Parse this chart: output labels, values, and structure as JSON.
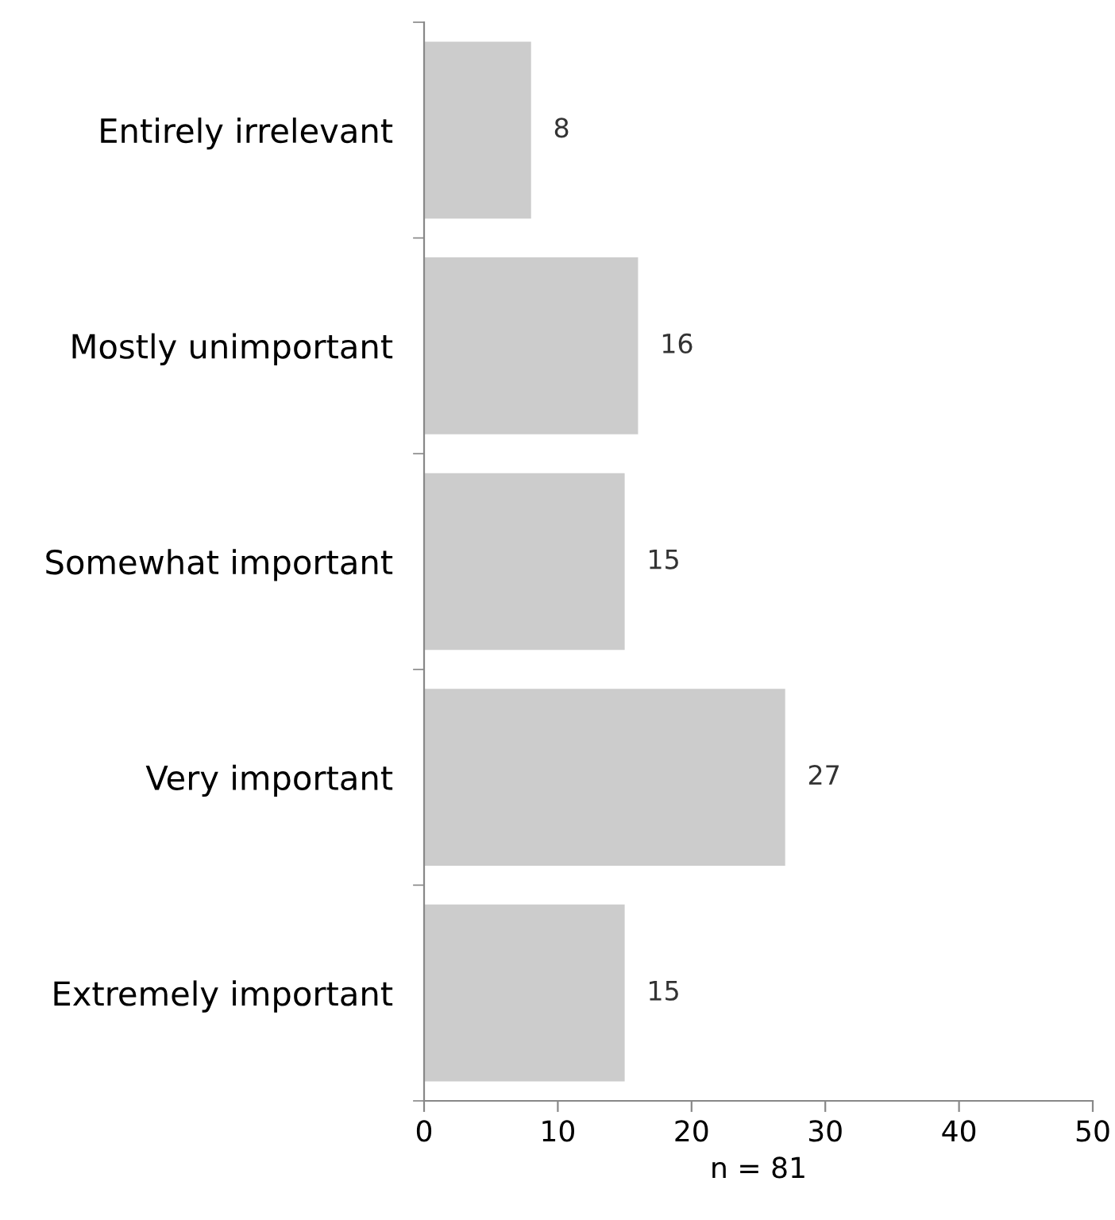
{
  "chart_data": {
    "type": "bar",
    "orientation": "horizontal",
    "categories": [
      "Entirely irrelevant",
      "Mostly unimportant",
      "Somewhat important",
      "Very important",
      "Extremely important"
    ],
    "values": [
      8,
      16,
      15,
      27,
      15
    ],
    "color": "#cccccc",
    "data_labels": true,
    "xlabel": "n = 81",
    "xlim": [
      0,
      50
    ],
    "xticks": [
      0,
      10,
      20,
      30,
      40,
      50
    ],
    "grid": false
  }
}
